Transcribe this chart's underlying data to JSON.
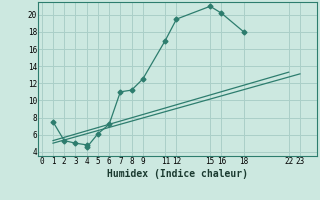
{
  "xlabel": "Humidex (Indice chaleur)",
  "bg_color": "#cce8e0",
  "grid_color": "#aacfc8",
  "line_color": "#2d7d6e",
  "line1_x": [
    1,
    2,
    3,
    4,
    4,
    5,
    6,
    7,
    8,
    9,
    11,
    12,
    15,
    16,
    18
  ],
  "line1_y": [
    7.5,
    5.3,
    5.0,
    4.8,
    4.5,
    6.1,
    7.2,
    11.0,
    11.2,
    12.5,
    17.0,
    19.5,
    21.0,
    20.2,
    18.0
  ],
  "line2_x": [
    1,
    23
  ],
  "line2_y": [
    5.0,
    13.1
  ],
  "line3_x": [
    1,
    22
  ],
  "line3_y": [
    5.3,
    13.3
  ],
  "xlim": [
    -0.3,
    24.5
  ],
  "ylim": [
    3.5,
    21.5
  ],
  "xticks": [
    0,
    1,
    2,
    3,
    4,
    5,
    6,
    7,
    8,
    9,
    11,
    12,
    15,
    16,
    18,
    22,
    23
  ],
  "yticks": [
    4,
    6,
    8,
    10,
    12,
    14,
    16,
    18,
    20
  ],
  "xtick_labels": [
    "0",
    "1",
    "2",
    "3",
    "4",
    "5",
    "6",
    "7",
    "8",
    "9",
    "11",
    "12",
    "15",
    "16",
    "18",
    "22",
    "23"
  ]
}
